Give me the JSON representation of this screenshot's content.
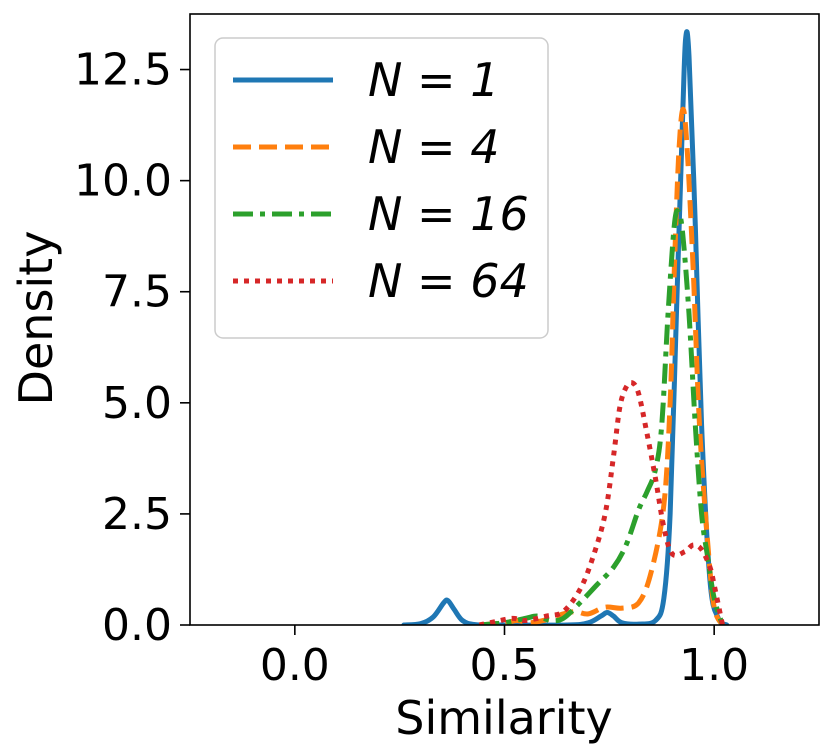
{
  "chart_data": {
    "type": "line",
    "title": "",
    "xlabel": "Similarity",
    "ylabel": "Density",
    "xlim": [
      -0.25,
      1.25
    ],
    "ylim": [
      0,
      13.75
    ],
    "xticks": [
      0.0,
      0.5,
      1.0
    ],
    "xtick_labels": [
      "0.0",
      "0.5",
      "1.0"
    ],
    "yticks": [
      0.0,
      2.5,
      5.0,
      7.5,
      10.0,
      12.5
    ],
    "ytick_labels": [
      "0.0",
      "2.5",
      "5.0",
      "7.5",
      "10.0",
      "12.5"
    ],
    "grid": false,
    "legend_position": "top-left",
    "series": [
      {
        "name": "N = 1",
        "color": "#1f77b4",
        "dash": "solid",
        "points": [
          [
            0.26,
            0.0
          ],
          [
            0.3,
            0.03
          ],
          [
            0.33,
            0.18
          ],
          [
            0.355,
            0.5
          ],
          [
            0.365,
            0.55
          ],
          [
            0.38,
            0.35
          ],
          [
            0.4,
            0.1
          ],
          [
            0.43,
            0.01
          ],
          [
            0.5,
            0.0
          ],
          [
            0.65,
            0.0
          ],
          [
            0.7,
            0.05
          ],
          [
            0.73,
            0.2
          ],
          [
            0.745,
            0.28
          ],
          [
            0.76,
            0.2
          ],
          [
            0.78,
            0.05
          ],
          [
            0.82,
            0.02
          ],
          [
            0.86,
            0.1
          ],
          [
            0.88,
            0.6
          ],
          [
            0.895,
            2.5
          ],
          [
            0.91,
            7.0
          ],
          [
            0.925,
            11.5
          ],
          [
            0.932,
            13.2
          ],
          [
            0.94,
            12.8
          ],
          [
            0.955,
            9.0
          ],
          [
            0.97,
            4.5
          ],
          [
            0.99,
            1.0
          ],
          [
            1.01,
            0.15
          ],
          [
            1.03,
            0.0
          ]
        ]
      },
      {
        "name": "N = 4",
        "color": "#ff7f0e",
        "dash": "dashed",
        "points": [
          [
            0.44,
            0.0
          ],
          [
            0.5,
            0.05
          ],
          [
            0.53,
            0.1
          ],
          [
            0.56,
            0.05
          ],
          [
            0.6,
            0.12
          ],
          [
            0.64,
            0.25
          ],
          [
            0.67,
            0.3
          ],
          [
            0.7,
            0.25
          ],
          [
            0.74,
            0.4
          ],
          [
            0.78,
            0.38
          ],
          [
            0.82,
            0.5
          ],
          [
            0.85,
            1.2
          ],
          [
            0.88,
            2.7
          ],
          [
            0.895,
            5.0
          ],
          [
            0.905,
            8.0
          ],
          [
            0.915,
            10.5
          ],
          [
            0.925,
            11.6
          ],
          [
            0.935,
            10.8
          ],
          [
            0.95,
            8.0
          ],
          [
            0.965,
            4.5
          ],
          [
            0.985,
            1.8
          ],
          [
            1.0,
            0.4
          ],
          [
            1.02,
            0.0
          ]
        ]
      },
      {
        "name": "N = 16",
        "color": "#2ca02c",
        "dash": "dashdot",
        "points": [
          [
            0.44,
            0.0
          ],
          [
            0.5,
            0.05
          ],
          [
            0.55,
            0.15
          ],
          [
            0.58,
            0.2
          ],
          [
            0.61,
            0.1
          ],
          [
            0.64,
            0.15
          ],
          [
            0.68,
            0.5
          ],
          [
            0.72,
            0.9
          ],
          [
            0.76,
            1.3
          ],
          [
            0.79,
            1.8
          ],
          [
            0.82,
            2.6
          ],
          [
            0.84,
            3.0
          ],
          [
            0.86,
            3.5
          ],
          [
            0.875,
            4.5
          ],
          [
            0.89,
            7.0
          ],
          [
            0.905,
            9.0
          ],
          [
            0.915,
            9.3
          ],
          [
            0.925,
            8.8
          ],
          [
            0.94,
            7.0
          ],
          [
            0.955,
            4.5
          ],
          [
            0.97,
            2.5
          ],
          [
            0.985,
            1.5
          ],
          [
            1.0,
            0.6
          ],
          [
            1.02,
            0.0
          ]
        ]
      },
      {
        "name": "N = 64",
        "color": "#d62728",
        "dash": "dotted",
        "points": [
          [
            0.44,
            0.0
          ],
          [
            0.48,
            0.08
          ],
          [
            0.52,
            0.15
          ],
          [
            0.55,
            0.1
          ],
          [
            0.6,
            0.2
          ],
          [
            0.64,
            0.3
          ],
          [
            0.68,
            0.8
          ],
          [
            0.71,
            1.5
          ],
          [
            0.74,
            2.5
          ],
          [
            0.76,
            3.8
          ],
          [
            0.775,
            4.9
          ],
          [
            0.79,
            5.35
          ],
          [
            0.805,
            5.45
          ],
          [
            0.82,
            5.2
          ],
          [
            0.84,
            4.3
          ],
          [
            0.86,
            3.3
          ],
          [
            0.88,
            2.2
          ],
          [
            0.9,
            1.6
          ],
          [
            0.93,
            1.65
          ],
          [
            0.95,
            1.8
          ],
          [
            0.97,
            1.7
          ],
          [
            0.99,
            1.3
          ],
          [
            1.0,
            0.9
          ],
          [
            1.02,
            0.0
          ]
        ]
      }
    ]
  }
}
